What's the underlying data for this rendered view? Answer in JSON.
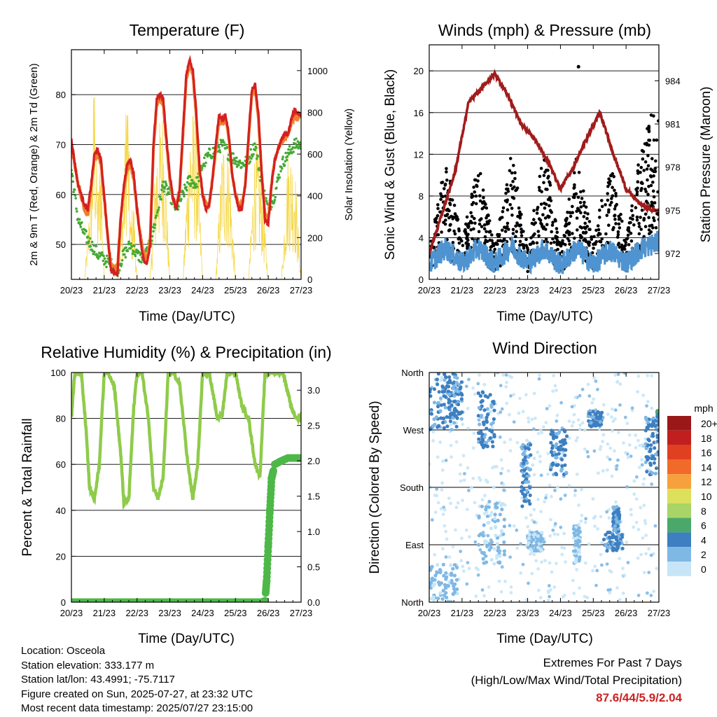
{
  "panels": {
    "temperature": {
      "title": "Temperature (F)",
      "ylabel_left": "2m & 9m T (Red, Orange) & 2m Td (Green)",
      "ylabel_right": "Solar Insolation (Yellow)",
      "xlabel": "Time (Day/UTC)"
    },
    "winds": {
      "title": "Winds (mph) & Pressure (mb)",
      "ylabel_left": "Sonic Wind & Gust (Blue, Black)",
      "ylabel_right": "Station Pressure (Maroon)",
      "xlabel": "Time (Day/UTC)"
    },
    "rh": {
      "title": "Relative Humidity (%) & Precipitation (in)",
      "ylabel_left": "Percent & Total Rainfall",
      "xlabel": "Time (Day/UTC)"
    },
    "winddir": {
      "title": "Wind Direction",
      "ylabel_left": "Direction (Colored By Speed)",
      "xlabel": "Time (Day/UTC)"
    }
  },
  "chart_data": [
    {
      "id": "temperature",
      "type": "line",
      "title": "Temperature (F)",
      "xlabel": "Time (Day/UTC)",
      "ylabel": "2m & 9m T (Red, Orange) & 2m Td (Green)",
      "ylabel_right": "Solar Insolation (Yellow)",
      "x_ticks": [
        "20/23",
        "21/23",
        "22/23",
        "23/23",
        "24/23",
        "25/23",
        "26/23",
        "27/23"
      ],
      "xlim": [
        0,
        7
      ],
      "ylim": [
        43,
        89
      ],
      "y_ticks": [
        50,
        60,
        70,
        80
      ],
      "ylim_right": [
        0,
        1100
      ],
      "y_ticks_right": [
        0,
        200,
        400,
        600,
        800,
        1000
      ],
      "series": [
        {
          "name": "2m T",
          "color": "#d42020",
          "axis": "left",
          "x": [
            0,
            0.2,
            0.4,
            0.5,
            0.6,
            0.7,
            0.8,
            0.9,
            1.0,
            1.1,
            1.2,
            1.4,
            1.5,
            1.6,
            1.7,
            1.8,
            1.9,
            2.0,
            2.1,
            2.2,
            2.3,
            2.4,
            2.5,
            2.6,
            2.7,
            2.8,
            2.9,
            3.0,
            3.1,
            3.2,
            3.3,
            3.4,
            3.5,
            3.6,
            3.7,
            3.8,
            3.9,
            4.0,
            4.1,
            4.2,
            4.3,
            4.4,
            4.5,
            4.6,
            4.7,
            4.8,
            4.9,
            5.0,
            5.1,
            5.2,
            5.3,
            5.4,
            5.5,
            5.6,
            5.7,
            5.8,
            5.9,
            6.0,
            6.1,
            6.2,
            6.3,
            6.4,
            6.5,
            6.6,
            6.7,
            6.8,
            6.9,
            7.0
          ],
          "values": [
            71,
            62,
            58,
            57,
            62,
            68,
            69,
            67,
            60,
            52,
            45,
            44,
            55,
            62,
            66,
            67,
            64,
            57,
            51,
            47,
            46,
            50,
            70,
            79,
            80,
            79,
            71,
            64,
            59,
            57,
            61,
            73,
            84,
            87,
            85,
            77,
            66,
            60,
            57,
            58,
            63,
            70,
            76,
            75,
            76,
            72,
            64,
            60,
            57,
            57,
            62,
            72,
            81,
            82,
            76,
            64,
            55,
            54,
            62,
            67,
            69,
            71,
            72,
            72,
            75,
            77,
            76,
            76
          ]
        },
        {
          "name": "9m T",
          "color": "#f07f30",
          "axis": "left",
          "x": [
            0,
            0.2,
            0.4,
            0.5,
            0.6,
            0.7,
            0.8,
            0.9,
            1.0,
            1.1,
            1.2,
            1.4,
            1.5,
            1.6,
            1.7,
            1.8,
            1.9,
            2.0,
            2.1,
            2.2,
            2.3,
            2.4,
            2.5,
            2.6,
            2.7,
            2.8,
            2.9,
            3.0,
            3.1,
            3.2,
            3.3,
            3.4,
            3.5,
            3.6,
            3.7,
            3.8,
            3.9,
            4.0,
            4.1,
            4.2,
            4.3,
            4.4,
            4.5,
            4.6,
            4.7,
            4.8,
            4.9,
            5.0,
            5.1,
            5.2,
            5.3,
            5.4,
            5.5,
            5.6,
            5.7,
            5.8,
            5.9,
            6.0,
            6.1,
            6.2,
            6.3,
            6.4,
            6.5,
            6.6,
            6.7,
            6.8,
            6.9,
            7.0
          ],
          "values": [
            70,
            62,
            57,
            56,
            61,
            67,
            68,
            66,
            59,
            52,
            46,
            45,
            55,
            61,
            65,
            66,
            63,
            57,
            52,
            48,
            47,
            51,
            69,
            78,
            79,
            78,
            70,
            63,
            59,
            58,
            61,
            72,
            83,
            86,
            84,
            76,
            65,
            60,
            58,
            58,
            63,
            69,
            75,
            74,
            75,
            71,
            64,
            60,
            58,
            58,
            62,
            71,
            80,
            81,
            75,
            64,
            56,
            55,
            62,
            67,
            69,
            71,
            71,
            72,
            74,
            76,
            75,
            76
          ]
        },
        {
          "name": "2m Td",
          "color": "#44aa33",
          "axis": "left",
          "x": [
            0,
            0.2,
            0.4,
            0.6,
            0.8,
            1.0,
            1.2,
            1.4,
            1.6,
            1.8,
            2.0,
            2.2,
            2.4,
            2.6,
            2.8,
            3.0,
            3.2,
            3.4,
            3.6,
            3.8,
            4.0,
            4.2,
            4.4,
            4.6,
            4.8,
            5.0,
            5.2,
            5.4,
            5.6,
            5.8,
            6.0,
            6.2,
            6.4,
            6.6,
            6.8,
            7.0
          ],
          "values": [
            65,
            55,
            52,
            50,
            48,
            47,
            46,
            45,
            48,
            50,
            48,
            47,
            50,
            56,
            62,
            60,
            57,
            60,
            63,
            62,
            66,
            68,
            69,
            70,
            68,
            67,
            66,
            67,
            70,
            62,
            57,
            60,
            66,
            68,
            70,
            70
          ]
        },
        {
          "name": "Solar Insolation",
          "color": "#f5d84a",
          "axis": "right",
          "x": [
            0,
            0.4,
            0.6,
            0.7,
            0.8,
            0.9,
            1.0,
            1.4,
            1.6,
            1.7,
            1.8,
            1.9,
            2.0,
            2.4,
            2.6,
            2.8,
            3.0,
            3.4,
            3.6,
            3.8,
            4.0,
            4.4,
            4.6,
            4.8,
            5.0,
            5.4,
            5.6,
            5.8,
            6.0,
            6.4,
            6.6,
            6.8,
            7.0
          ],
          "values": [
            0,
            0,
            500,
            1090,
            400,
            700,
            0,
            0,
            500,
            1090,
            300,
            400,
            0,
            0,
            700,
            850,
            0,
            0,
            800,
            850,
            0,
            0,
            700,
            650,
            0,
            0,
            700,
            500,
            0,
            0,
            650,
            600,
            0
          ]
        }
      ]
    },
    {
      "id": "winds",
      "type": "scatter",
      "title": "Winds (mph) & Pressure (mb)",
      "xlabel": "Time (Day/UTC)",
      "ylabel": "Sonic Wind & Gust (Blue, Black)",
      "ylabel_right": "Station Pressure (Maroon)",
      "x_ticks": [
        "20/23",
        "21/23",
        "22/23",
        "23/23",
        "24/23",
        "25/23",
        "26/23",
        "27/23"
      ],
      "xlim": [
        0,
        7
      ],
      "ylim": [
        0,
        22.5
      ],
      "y_ticks": [
        0,
        4,
        8,
        12,
        16,
        20
      ],
      "ylim_right": [
        970.2,
        986.5
      ],
      "y_ticks_right": [
        972,
        975,
        978,
        981,
        984
      ],
      "series": [
        {
          "name": "Sonic Wind",
          "color": "#4f94d0",
          "axis": "left",
          "x": [
            0,
            0.5,
            1.0,
            1.5,
            2.0,
            2.5,
            3.0,
            3.5,
            4.0,
            4.5,
            5.0,
            5.5,
            6.0,
            6.5,
            7.0
          ],
          "values": [
            1.5,
            3.0,
            1.5,
            3.0,
            1.5,
            3.2,
            1.5,
            3.0,
            1.3,
            3.0,
            1.4,
            2.8,
            1.6,
            3.0,
            3.6
          ]
        },
        {
          "name": "Gust",
          "color": "#000000",
          "axis": "left",
          "x": [
            0,
            0.5,
            1.0,
            1.5,
            2.0,
            2.5,
            3.0,
            3.5,
            4.0,
            4.5,
            5.0,
            5.5,
            6.0,
            6.5,
            7.0
          ],
          "values": [
            2.0,
            8.0,
            2.5,
            7.5,
            2.0,
            8.5,
            2.0,
            8.5,
            2.0,
            8.0,
            2.5,
            8.0,
            2.5,
            9.0,
            12.0
          ]
        },
        {
          "name": "Station Pressure",
          "color": "#a01c1c",
          "axis": "right",
          "x": [
            0,
            0.4,
            0.8,
            1.2,
            1.6,
            2.0,
            2.4,
            2.8,
            3.2,
            3.6,
            4.0,
            4.4,
            4.8,
            5.2,
            5.6,
            6.0,
            6.4,
            6.8,
            7.0
          ],
          "values": [
            972.0,
            974.8,
            977.8,
            982.5,
            983.5,
            984.5,
            983.0,
            981.0,
            980.0,
            978.5,
            976.5,
            978.0,
            980.0,
            981.8,
            979.0,
            976.5,
            975.5,
            975.0,
            975.0
          ]
        }
      ]
    },
    {
      "id": "rh",
      "type": "line",
      "title": "Relative Humidity (%) & Precipitation (in)",
      "xlabel": "Time (Day/UTC)",
      "ylabel": "Percent & Total Rainfall",
      "x_ticks": [
        "20/23",
        "21/23",
        "22/23",
        "23/23",
        "24/23",
        "25/23",
        "26/23",
        "27/23"
      ],
      "xlim": [
        0,
        7
      ],
      "ylim": [
        0,
        100
      ],
      "y_ticks": [
        0,
        20,
        40,
        60,
        80,
        100
      ],
      "ylim_right": [
        0.0,
        3.25
      ],
      "y_ticks_right": [
        "0.0",
        "0.5",
        "1.0",
        "1.5",
        "2.0",
        "2.5",
        "3.0"
      ],
      "series": [
        {
          "name": "Relative Humidity",
          "color": "#8fcb4a",
          "axis": "left",
          "x": [
            0,
            0.1,
            0.3,
            0.45,
            0.55,
            0.7,
            0.85,
            1.0,
            1.1,
            1.3,
            1.5,
            1.6,
            1.75,
            1.9,
            2.0,
            2.15,
            2.35,
            2.5,
            2.65,
            2.8,
            2.95,
            3.1,
            3.3,
            3.55,
            3.7,
            3.85,
            4.0,
            4.2,
            4.45,
            4.6,
            4.75,
            4.85,
            5.0,
            5.2,
            5.4,
            5.6,
            5.75,
            5.9,
            6.0,
            6.2,
            6.45,
            6.7,
            6.85,
            7.0
          ],
          "values": [
            80,
            100,
            100,
            75,
            50,
            45,
            60,
            100,
            100,
            95,
            65,
            43,
            45,
            85,
            100,
            100,
            80,
            50,
            45,
            55,
            100,
            100,
            95,
            60,
            45,
            60,
            100,
            100,
            80,
            82,
            100,
            100,
            100,
            85,
            80,
            60,
            55,
            100,
            100,
            100,
            100,
            85,
            80,
            80
          ]
        },
        {
          "name": "Total Rainfall",
          "color": "#4db848",
          "axis": "right",
          "x": [
            0,
            5.8,
            5.9,
            5.95,
            6.0,
            6.05,
            6.1,
            6.2,
            6.4,
            6.6,
            7.0
          ],
          "values": [
            0.0,
            0.0,
            0.02,
            0.3,
            0.8,
            1.3,
            1.75,
            1.95,
            2.0,
            2.04,
            2.04
          ]
        }
      ]
    },
    {
      "id": "winddir",
      "type": "scatter",
      "title": "Wind Direction",
      "xlabel": "Time (Day/UTC)",
      "ylabel": "Direction (Colored By Speed)",
      "x_ticks": [
        "20/23",
        "21/23",
        "22/23",
        "23/23",
        "24/23",
        "25/23",
        "26/23",
        "27/23"
      ],
      "xlim": [
        0,
        7
      ],
      "y_categories": [
        "North",
        "East",
        "South",
        "West",
        "North"
      ],
      "ylim": [
        0,
        360
      ],
      "legend": {
        "title": "mph",
        "placement": "right",
        "entries": [
          {
            "label": "20+",
            "color": "#9b1818"
          },
          {
            "label": "18",
            "color": "#c11f1f"
          },
          {
            "label": "16",
            "color": "#e0401f"
          },
          {
            "label": "14",
            "color": "#f16a2a"
          },
          {
            "label": "12",
            "color": "#f7a13e"
          },
          {
            "label": "10",
            "color": "#dde05a"
          },
          {
            "label": "8",
            "color": "#a8d468"
          },
          {
            "label": "6",
            "color": "#4aa86a"
          },
          {
            "label": "4",
            "color": "#3d7fc0"
          },
          {
            "label": "2",
            "color": "#7fb8e5"
          },
          {
            "label": "0",
            "color": "#c6e6f7"
          }
        ]
      },
      "clusters": [
        {
          "x": [
            0,
            0.9
          ],
          "dir": [
            270,
            360
          ],
          "speed": 3
        },
        {
          "x": [
            0,
            0.9
          ],
          "dir": [
            0,
            60
          ],
          "speed": 2
        },
        {
          "x": [
            0.4,
            1.0
          ],
          "dir": [
            280,
            345
          ],
          "speed": 4
        },
        {
          "x": [
            1.5,
            2.0
          ],
          "dir": [
            240,
            330
          ],
          "speed": 3
        },
        {
          "x": [
            1.5,
            2.3
          ],
          "dir": [
            60,
            160
          ],
          "speed": 2
        },
        {
          "x": [
            2.8,
            3.1
          ],
          "dir": [
            150,
            250
          ],
          "speed": 3
        },
        {
          "x": [
            3.0,
            3.5
          ],
          "dir": [
            80,
            110
          ],
          "speed": 1
        },
        {
          "x": [
            3.7,
            4.2
          ],
          "dir": [
            200,
            270
          ],
          "speed": 4
        },
        {
          "x": [
            4.4,
            4.6
          ],
          "dir": [
            60,
            120
          ],
          "speed": 1
        },
        {
          "x": [
            4.85,
            5.3
          ],
          "dir": [
            275,
            300
          ],
          "speed": 4
        },
        {
          "x": [
            5.3,
            5.9
          ],
          "dir": [
            80,
            110
          ],
          "speed": 3
        },
        {
          "x": [
            5.6,
            5.8
          ],
          "dir": [
            110,
            150
          ],
          "speed": 4
        },
        {
          "x": [
            6.6,
            7.0
          ],
          "dir": [
            200,
            290
          ],
          "speed": 3
        },
        {
          "x": [
            6.95,
            7.0
          ],
          "dir": [
            290,
            300
          ],
          "speed": 6
        }
      ]
    }
  ],
  "footer": {
    "location": "Location: Osceola",
    "elevation": "Station elevation: 333.177 m",
    "latlon": "Station lat/lon: 43.4991; -75.7117",
    "created": "Figure created on Sun, 2025-07-27, at 23:32 UTC",
    "latest": "Most recent data timestamp: 2025/07/27 23:15:00"
  },
  "extremes": {
    "title": "Extremes For Past 7 Days",
    "subtitle": "(High/Low/Max Wind/Total Precipitation)",
    "values": "87.6/44/5.9/2.04"
  }
}
